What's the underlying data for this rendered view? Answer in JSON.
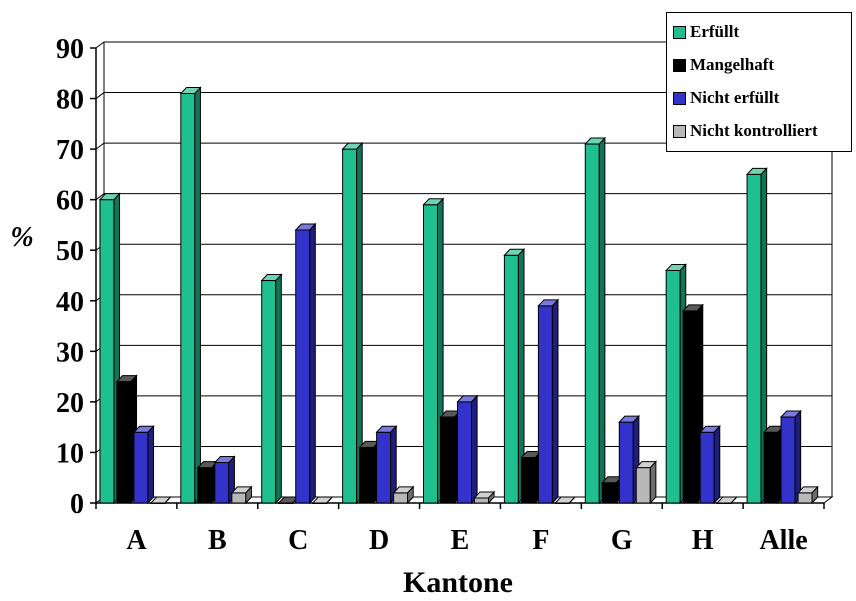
{
  "chart_data": {
    "type": "bar",
    "title": "",
    "xlabel": "Kantone",
    "ylabel": "%",
    "ylim": [
      0,
      90
    ],
    "yticks": [
      0,
      10,
      20,
      30,
      40,
      50,
      60,
      70,
      80,
      90
    ],
    "grid": true,
    "legend_position": "top-right",
    "categories": [
      "A",
      "B",
      "C",
      "D",
      "E",
      "F",
      "G",
      "H",
      "Alle"
    ],
    "series": [
      {
        "name": "Erfüllt",
        "color": "#1fbf8f",
        "values": [
          60,
          81,
          44,
          70,
          59,
          49,
          71,
          46,
          65
        ]
      },
      {
        "name": "Mangelhaft",
        "color": "#000000",
        "values": [
          24,
          7,
          0,
          11,
          17,
          9,
          4,
          38,
          14
        ]
      },
      {
        "name": "Nicht erfüllt",
        "color": "#3333cc",
        "values": [
          14,
          8,
          54,
          14,
          20,
          39,
          16,
          14,
          17
        ]
      },
      {
        "name": "Nicht kontrolliert",
        "color": "#b8b8b8",
        "values": [
          0,
          2,
          0,
          2,
          1,
          0,
          7,
          0,
          2
        ]
      }
    ]
  }
}
